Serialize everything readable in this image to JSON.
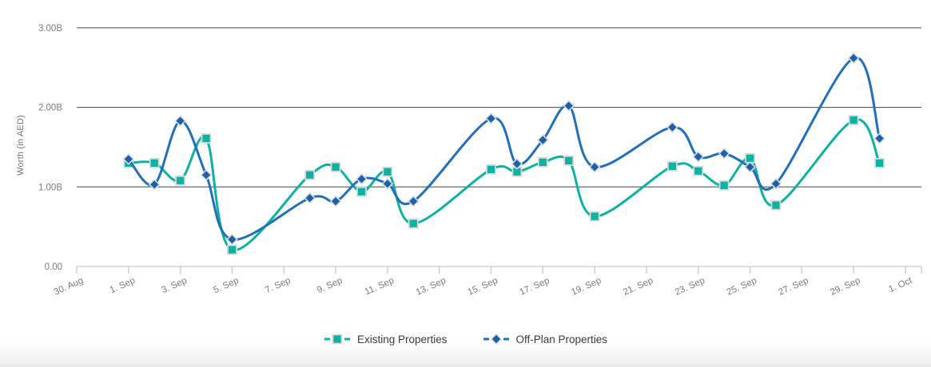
{
  "chart_data": {
    "type": "line",
    "title": "",
    "xlabel": "",
    "ylabel": "Worth (in AED)",
    "value_unit": "billions AED",
    "ylim": [
      0,
      3.15
    ],
    "x_range_days_from_aug30": [
      0,
      32
    ],
    "grid": "horizontal-only",
    "legend_position": "bottom-center",
    "y_ticks": [
      {
        "label": "0.00",
        "value": 0
      },
      {
        "label": "1.00B",
        "value": 1
      },
      {
        "label": "2.00B",
        "value": 2
      },
      {
        "label": "3.00B",
        "value": 3
      }
    ],
    "x_tick_labels": [
      "30. Aug",
      "1. Sep",
      "3. Sep",
      "5. Sep",
      "7. Sep",
      "9. Sep",
      "11. Sep",
      "13. Sep",
      "15. Sep",
      "17. Sep",
      "19. Sep",
      "21. Sep",
      "23. Sep",
      "25. Sep",
      "27. Sep",
      "29. Sep",
      "1. Oct"
    ],
    "x_tick_days": [
      0,
      2,
      4,
      6,
      8,
      10,
      12,
      14,
      16,
      18,
      20,
      22,
      24,
      26,
      28,
      30,
      32
    ],
    "dates": [
      "1 Sep",
      "2 Sep",
      "3 Sep",
      "4 Sep",
      "5 Sep",
      "8 Sep",
      "9 Sep",
      "10 Sep",
      "11 Sep",
      "12 Sep",
      "15 Sep",
      "16 Sep",
      "17 Sep",
      "18 Sep",
      "19 Sep",
      "22 Sep",
      "23 Sep",
      "24 Sep",
      "25 Sep",
      "26 Sep",
      "29 Sep",
      "30 Sep"
    ],
    "days": [
      2,
      3,
      4,
      5,
      6,
      9,
      10,
      11,
      12,
      13,
      16,
      17,
      18,
      19,
      20,
      23,
      24,
      25,
      26,
      27,
      30,
      31
    ],
    "series": [
      {
        "name": "Existing Properties",
        "marker": "square",
        "line_color": "#0cb2a2",
        "marker_color": "#0cb2a2",
        "values": [
          1.3,
          1.3,
          1.08,
          1.61,
          0.21,
          1.15,
          1.25,
          0.94,
          1.19,
          0.54,
          1.22,
          1.19,
          1.31,
          1.33,
          0.63,
          1.26,
          1.2,
          1.02,
          1.36,
          0.77,
          1.84,
          1.3
        ]
      },
      {
        "name": "Off-Plan Properties",
        "marker": "diamond",
        "line_color": "#2170b9",
        "marker_color": "#1a61ab",
        "values": [
          1.35,
          1.03,
          1.83,
          1.15,
          0.34,
          0.86,
          0.82,
          1.1,
          1.04,
          0.82,
          1.86,
          1.29,
          1.59,
          2.02,
          1.25,
          1.75,
          1.38,
          1.42,
          1.25,
          1.04,
          2.62,
          1.61
        ]
      }
    ],
    "colors": {
      "dark_gridline": "#474747",
      "baseline_axis": "#c9c9c9",
      "tick_label": "#7c7c7c",
      "legend_text": "#3b3b3b",
      "marker_halo": "#d8d8d8"
    }
  }
}
